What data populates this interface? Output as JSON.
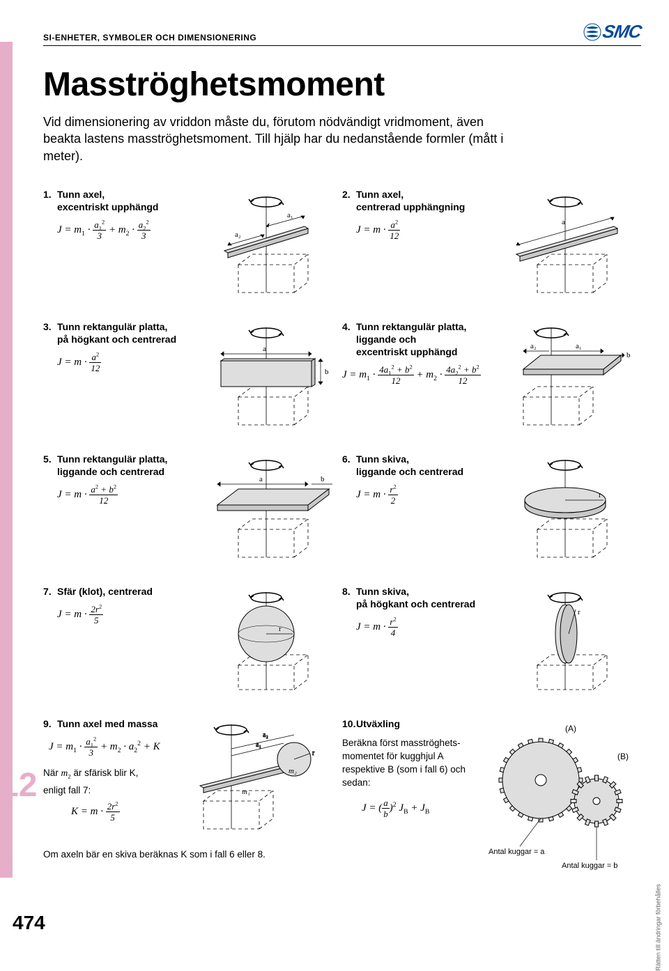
{
  "header": {
    "category": "SI-ENHETER, SYMBOLER OCH DIMENSIONERING",
    "brand": "SMC"
  },
  "title": "Masströghetsmoment",
  "intro": "Vid dimensionering av vriddon måste du, förutom nödvändigt vridmoment, även beakta lastens masströghetsmoment. Till hjälp har du nedanstående formler (mått i meter).",
  "items": [
    {
      "num": "1.",
      "label": "Tunn axel,\nexcentriskt upphängd"
    },
    {
      "num": "2.",
      "label": "Tunn axel,\ncentrerad upphängning"
    },
    {
      "num": "3.",
      "label": "Tunn rektangulär platta,\npå högkant och centrerad"
    },
    {
      "num": "4.",
      "label": "Tunn rektangulär platta,\nliggande och\nexcentriskt upphängd"
    },
    {
      "num": "5.",
      "label": "Tunn rektangulär platta,\nliggande och centrerad"
    },
    {
      "num": "6.",
      "label": "Tunn skiva,\nliggande och centrerad"
    },
    {
      "num": "7.",
      "label": "Sfär (klot), centrerad"
    },
    {
      "num": "8.",
      "label": "Tunn skiva,\npå högkant och centrerad"
    },
    {
      "num": "9.",
      "label": "Tunn axel med massa"
    },
    {
      "num": "10.",
      "label": "Utväxling"
    }
  ],
  "case9": {
    "note1_a": "När ",
    "note1_b": " är sfärisk blir K,",
    "note2": "enligt fall 7:",
    "note3": "Om axeln bär en skiva beräknas K som i fall 6 eller 8."
  },
  "case10": {
    "text": "Beräkna först masströghets-\nmomentet för kugghjul A respektive B (som i fall 6) och sedan:",
    "label_a": "(A)",
    "label_b": "(B)",
    "teeth_a": "Antal kuggar = a",
    "teeth_b": "Antal kuggar = b"
  },
  "sidenum": "12",
  "pagenum": "474",
  "sidetext": "Rätten till ändringar förbehålles",
  "colors": {
    "pink": "#e6aec9",
    "blue": "#004c97",
    "grey": "#c8c8c8",
    "shade": "#dedede"
  }
}
